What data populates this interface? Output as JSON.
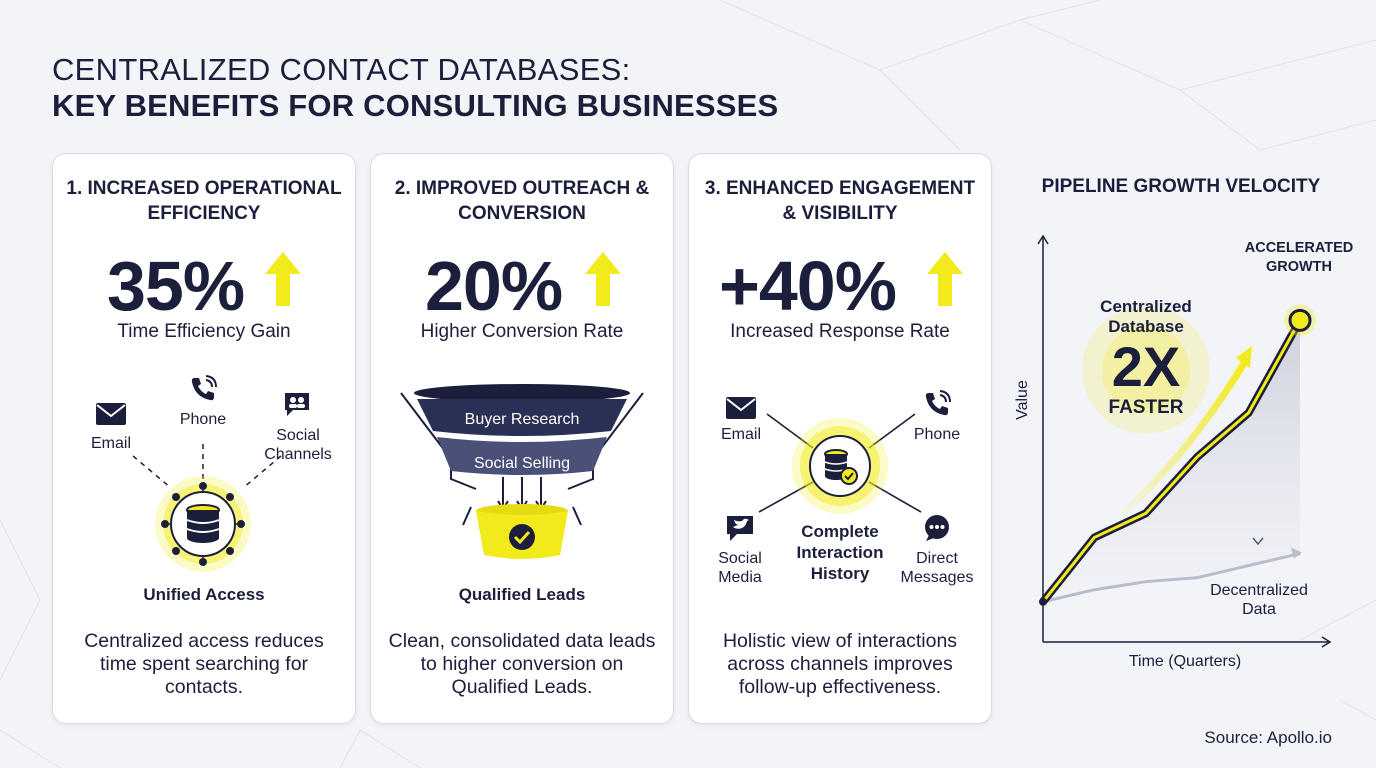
{
  "header": {
    "title_line1": "CENTRALIZED CONTACT DATABASES:",
    "title_line2": "KEY BENEFITS FOR CONSULTING BUSINESSES"
  },
  "colors": {
    "navy": "#1b1f3b",
    "accent_yellow": "#f2ea1a",
    "card_bg": "#ffffff",
    "page_bg": "#f3f4f8",
    "muted_gray": "#b9bccb"
  },
  "cards": [
    {
      "title": "1. INCREASED OPERATIONAL EFFICIENCY",
      "stat": "35%",
      "stat_label": "Time Efficiency Gain",
      "diagram": {
        "channels": [
          "Email",
          "Phone",
          "Social Channels"
        ],
        "hub_label": "Unified Access",
        "icons": [
          "envelope-icon",
          "phone-icon",
          "chat-people-icon",
          "database-icon"
        ]
      },
      "description": "Centralized access reduces time spent searching for contacts."
    },
    {
      "title": "2. IMPROVED OUTREACH & CONVERSION",
      "stat": "20%",
      "stat_label": "Higher Conversion Rate",
      "diagram": {
        "funnel_stages": [
          "Buyer Research",
          "Social Selling"
        ],
        "result_label": "Qualified Leads",
        "icons": [
          "funnel-icon",
          "check-icon"
        ]
      },
      "description": "Clean, consolidated data leads to higher conversion on Qualified Leads."
    },
    {
      "title": "3. ENHANCED ENGAGEMENT & VISIBILITY",
      "stat": "+40%",
      "stat_label": "Increased Response Rate",
      "diagram": {
        "channels": [
          "Email",
          "Phone",
          "Social Media",
          "Direct Messages"
        ],
        "hub_label": "Complete Interaction History",
        "icons": [
          "envelope-icon",
          "phone-icon",
          "chat-bird-icon",
          "chat-dots-icon",
          "database-check-icon"
        ]
      },
      "description": "Holistic view of interactions across channels improves follow-up effectiveness."
    }
  ],
  "chart_data": {
    "type": "line",
    "title": "PIPELINE GROWTH VELOCITY",
    "xlabel": "Time (Quarters)",
    "ylabel": "Value",
    "series": [
      {
        "name": "Centralized Database",
        "values": [
          1.0,
          2.6,
          3.2,
          4.6,
          5.7,
          8.0
        ]
      },
      {
        "name": "Decentralized Data",
        "values": [
          1.0,
          1.3,
          1.5,
          1.6,
          1.9,
          2.2
        ]
      }
    ],
    "x": [
      0,
      1,
      2,
      3,
      4,
      5
    ],
    "ylim": [
      0,
      9.5
    ],
    "grid": false,
    "annotations": {
      "top": "ACCELERATED GROWTH",
      "badge_label": "Centralized Database",
      "badge_value": "2X",
      "badge_sub": "FASTER"
    }
  },
  "source": "Source: Apollo.io"
}
